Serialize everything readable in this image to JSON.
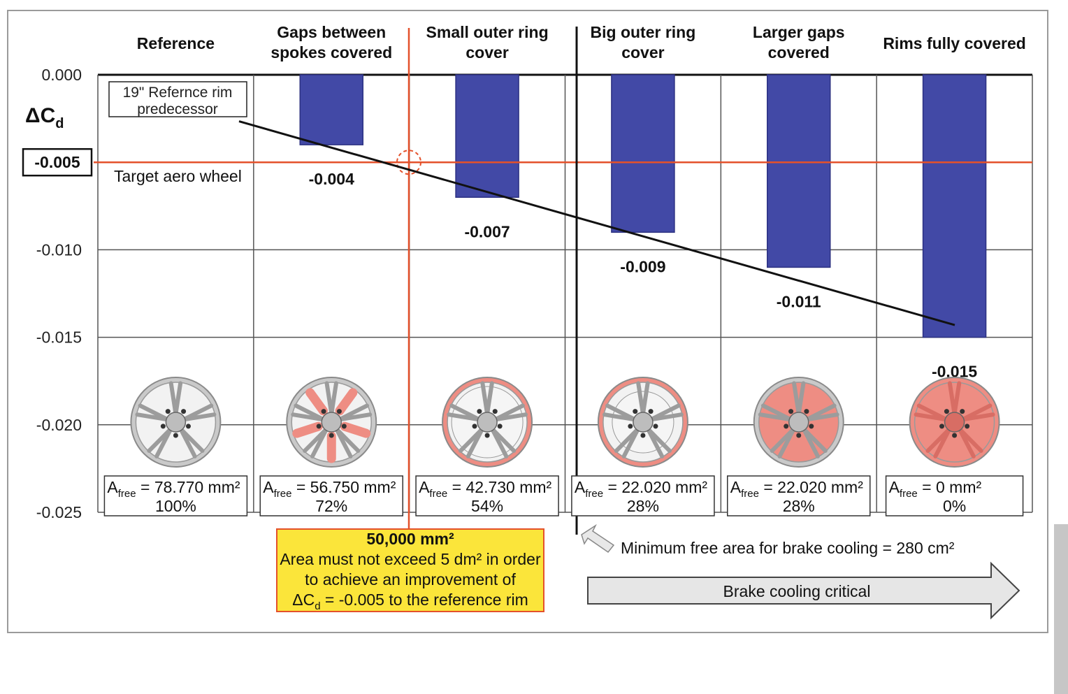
{
  "chart_data": {
    "type": "bar",
    "categories": [
      [
        "Reference"
      ],
      [
        "Gaps between",
        "spokes covered"
      ],
      [
        "Small outer ring",
        "cover"
      ],
      [
        "Big outer ring",
        "cover"
      ],
      [
        "Larger gaps",
        "covered"
      ],
      [
        "Rims fully covered"
      ]
    ],
    "values": [
      0,
      -0.004,
      -0.007,
      -0.009,
      -0.011,
      -0.015
    ],
    "value_labels": [
      "",
      "-0.004",
      "-0.007",
      "-0.009",
      "-0.011",
      "-0.015"
    ],
    "y_axis_label": "ΔC",
    "y_axis_label_sub": "d",
    "yticks": [
      "0.000",
      "-0.005",
      "-0.010",
      "-0.015",
      "-0.020",
      "-0.025"
    ],
    "ytick_values": [
      0,
      -0.005,
      -0.01,
      -0.015,
      -0.02,
      -0.025
    ],
    "ylim": [
      -0.025,
      0
    ],
    "target": {
      "value": -0.005,
      "label_value": "-0.005",
      "text": "Target aero wheel"
    },
    "trend_line": {
      "from": -0.0025,
      "to": -0.0143
    },
    "reference_box": [
      "19\" Refernce rim",
      "predecessor"
    ],
    "free_areas": [
      {
        "value": "= 78.770 mm²",
        "percent": "100%",
        "percent_value": 100
      },
      {
        "value": "= 56.750 mm²",
        "percent": "72%",
        "percent_value": 72
      },
      {
        "value": "= 42.730 mm²",
        "percent": "54%",
        "percent_value": 54
      },
      {
        "value": "= 22.020 mm²",
        "percent": "28%",
        "percent_value": 28
      },
      {
        "value": "= 22.020 mm²",
        "percent": "28%",
        "percent_value": 28
      },
      {
        "value": "= 0 mm²",
        "percent": "0%",
        "percent_value": 0
      }
    ],
    "free_label_main": "A",
    "free_label_sub": "free",
    "limit_note": {
      "title": "50,000 mm²",
      "lines": [
        "Area must not exceed 5 dm² in order",
        "to achieve an improvement of"
      ],
      "last_prefix": "ΔC",
      "last_sub": "d",
      "last_suffix": " = -0.005 to the reference rim"
    },
    "min_area_note": "Minimum free area for brake cooling   =   280 cm²",
    "arrow_label": "Brake cooling critical",
    "grid": true
  },
  "colors": {
    "bar": "#4249a6",
    "bar_edge": "#2c3182",
    "target": "#e4512b",
    "note_fill": "#fbe53a",
    "note_border": "#e4512b",
    "wheel_cover": "#ee8d83",
    "arrow_fill": "#e6e6e6"
  }
}
